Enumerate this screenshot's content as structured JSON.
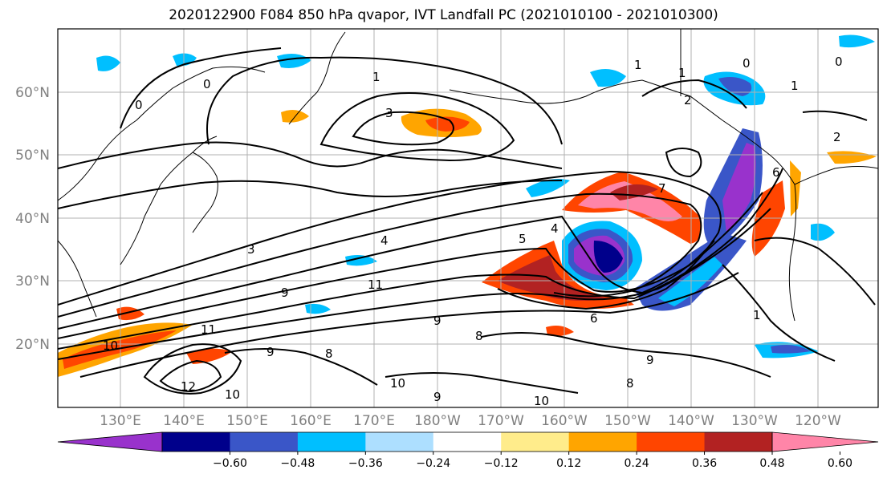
{
  "title": "2020122900 F084 850 hPa qvapor, IVT Landfall PC (2021010100 - 2021010300)",
  "lat_labels": [
    "60°N",
    "50°N",
    "40°N",
    "30°N",
    "20°N"
  ],
  "lon_labels": [
    "130°E",
    "140°E",
    "150°E",
    "160°E",
    "170°E",
    "180°W",
    "170°W",
    "160°W",
    "150°W",
    "140°W",
    "130°W",
    "120°W"
  ],
  "colorbar": {
    "colors": [
      "#9932CC",
      "#00008B",
      "#3A56C8",
      "#00BFFF",
      "#ADDFFF",
      "#FFFFFF",
      "#FFEC8B",
      "#FFA500",
      "#FF4500",
      "#B22222",
      "#FF85A8"
    ],
    "ticks": [
      "−0.60",
      "−0.48",
      "−0.36",
      "−0.24",
      "−0.12",
      "0.12",
      "0.24",
      "0.36",
      "0.48",
      "0.60"
    ]
  },
  "contour_labels": [
    "0",
    "3",
    "4",
    "3",
    "1",
    "2",
    "1",
    "0",
    "0",
    "4",
    "5",
    "7",
    "9",
    "11",
    "9",
    "11",
    "10",
    "12",
    "10",
    "9",
    "8",
    "10",
    "9",
    "8",
    "9",
    "6",
    "8",
    "10",
    "2",
    "1",
    "6",
    "1",
    "1",
    "0"
  ]
}
